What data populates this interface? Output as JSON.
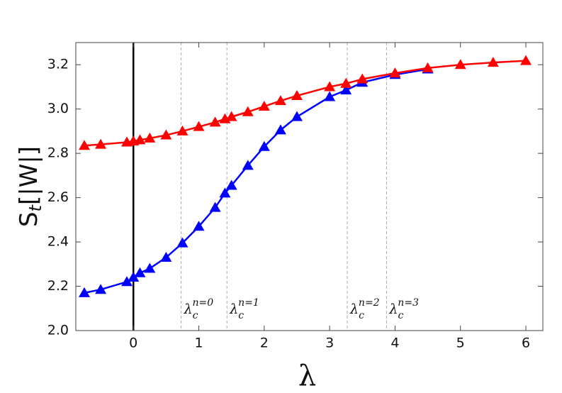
{
  "chart_data": {
    "type": "line",
    "x_label": "λ",
    "y_label": {
      "base": "S",
      "sub": "t",
      "rest": "[|W|]"
    },
    "xlim": [
      -0.88,
      6.26
    ],
    "ylim": [
      2.0,
      3.3
    ],
    "xticks": [
      0,
      1,
      2,
      3,
      4,
      5,
      6
    ],
    "yticks": [
      {
        "value": 2.0,
        "label": "2.0"
      },
      {
        "value": 2.2,
        "label": "2.2"
      },
      {
        "value": 2.4,
        "label": "2.4"
      },
      {
        "value": 2.6,
        "label": "2.6"
      },
      {
        "value": 2.8,
        "label": "2.8"
      },
      {
        "value": 3.0,
        "label": "3.0"
      },
      {
        "value": 3.2,
        "label": "3.2"
      }
    ],
    "zero_line": true,
    "series": [
      {
        "color": "#0000ff",
        "x": [
          -0.75,
          -0.5,
          -0.1,
          0,
          0.1,
          0.25,
          0.5,
          0.75,
          1,
          1.25,
          1.4,
          1.5,
          1.75,
          2,
          2.25,
          2.5,
          3,
          3.25,
          3.5,
          4,
          4.5
        ],
        "values": [
          2.17,
          2.185,
          2.22,
          2.24,
          2.26,
          2.28,
          2.33,
          2.395,
          2.47,
          2.555,
          2.62,
          2.655,
          2.745,
          2.83,
          2.905,
          2.965,
          3.055,
          3.085,
          3.12,
          3.155,
          3.18
        ]
      },
      {
        "color": "#ff0000",
        "x": [
          -0.75,
          -0.5,
          -0.1,
          0,
          0.1,
          0.25,
          0.5,
          0.75,
          1,
          1.25,
          1.4,
          1.5,
          1.75,
          2,
          2.25,
          2.5,
          3,
          3.25,
          3.5,
          4,
          4.5,
          5,
          5.5,
          6
        ],
        "values": [
          2.835,
          2.84,
          2.85,
          2.855,
          2.86,
          2.868,
          2.882,
          2.9,
          2.92,
          2.94,
          2.955,
          2.965,
          2.987,
          3.012,
          3.037,
          3.06,
          3.1,
          3.115,
          3.135,
          3.162,
          3.185,
          3.2,
          3.21,
          3.218
        ]
      }
    ],
    "annotations": [
      {
        "x": 0.73,
        "base": "λ",
        "sub": "c",
        "sup": "n=0"
      },
      {
        "x": 1.43,
        "base": "λ",
        "sub": "c",
        "sup": "n=1"
      },
      {
        "x": 3.27,
        "base": "λ",
        "sub": "c",
        "sup": "n=2"
      },
      {
        "x": 3.87,
        "base": "λ",
        "sub": "c",
        "sup": "n=3"
      }
    ]
  }
}
